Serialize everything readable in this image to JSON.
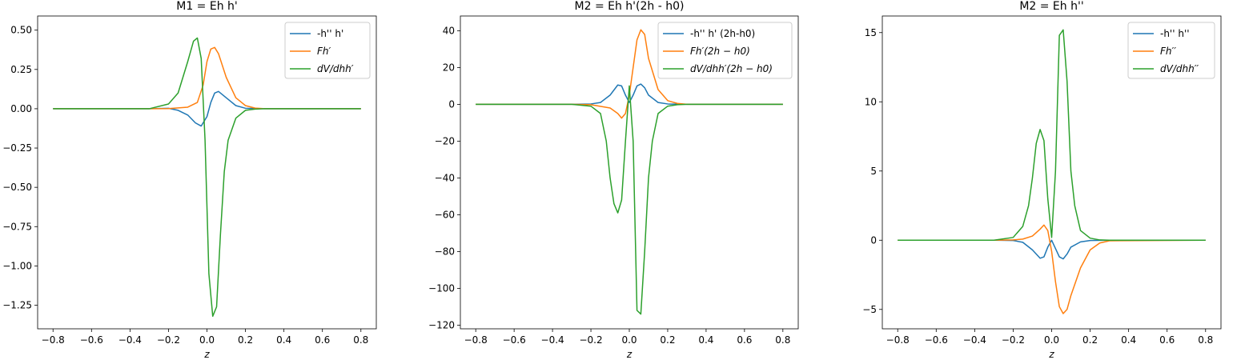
{
  "colors": {
    "blue": "#1f77b4",
    "orange": "#ff7f0e",
    "green": "#2ca02c"
  },
  "chart_data": [
    {
      "type": "line",
      "title": "M1 = Eh h'",
      "xlabel": "z",
      "ylabel": "",
      "xlim": [
        -0.88,
        0.88
      ],
      "ylim": [
        -1.4,
        0.59
      ],
      "xticks": [
        -0.8,
        -0.6,
        -0.4,
        -0.2,
        0.0,
        0.2,
        0.4,
        0.6,
        0.8
      ],
      "xtick_labels": [
        "−0.8",
        "−0.6",
        "−0.4",
        "−0.2",
        "0.0",
        "0.2",
        "0.4",
        "0.6",
        "0.8"
      ],
      "yticks": [
        -1.25,
        -1.0,
        -0.75,
        -0.5,
        -0.25,
        0.0,
        0.25,
        0.5
      ],
      "ytick_labels": [
        "−1.25",
        "−1.00",
        "−0.75",
        "−0.50",
        "−0.25",
        "0.00",
        "0.25",
        "0.50"
      ],
      "legend_position": "top-right",
      "series": [
        {
          "name": "-h'' h'",
          "color": "#1f77b4",
          "x": [
            -0.8,
            -0.3,
            -0.2,
            -0.15,
            -0.1,
            -0.06,
            -0.03,
            0.0,
            0.02,
            0.04,
            0.06,
            0.1,
            0.15,
            0.2,
            0.3,
            0.8
          ],
          "y": [
            0,
            0,
            0.003,
            -0.01,
            -0.04,
            -0.09,
            -0.11,
            -0.05,
            0.04,
            0.1,
            0.11,
            0.07,
            0.02,
            0.003,
            0,
            0
          ]
        },
        {
          "name": "Fh′",
          "color": "#ff7f0e",
          "x": [
            -0.8,
            -0.3,
            -0.2,
            -0.1,
            -0.05,
            -0.02,
            0.0,
            0.02,
            0.04,
            0.06,
            0.1,
            0.15,
            0.2,
            0.25,
            0.3,
            0.8
          ],
          "y": [
            0,
            0,
            0.001,
            0.01,
            0.04,
            0.15,
            0.3,
            0.38,
            0.39,
            0.35,
            0.2,
            0.07,
            0.02,
            0.004,
            0,
            0
          ]
        },
        {
          "name": "dV/dhh′",
          "color": "#2ca02c",
          "x": [
            -0.8,
            -0.3,
            -0.2,
            -0.15,
            -0.1,
            -0.07,
            -0.05,
            -0.03,
            -0.01,
            0.01,
            0.03,
            0.05,
            0.07,
            0.09,
            0.11,
            0.15,
            0.2,
            0.25,
            0.3,
            0.8
          ],
          "y": [
            0,
            0,
            0.03,
            0.1,
            0.3,
            0.43,
            0.45,
            0.32,
            -0.2,
            -1.05,
            -1.32,
            -1.26,
            -0.8,
            -0.4,
            -0.2,
            -0.06,
            -0.01,
            -0.002,
            0,
            0
          ]
        }
      ]
    },
    {
      "type": "line",
      "title": "M2 = Eh h'(2h - h0)",
      "xlabel": "z",
      "ylabel": "",
      "xlim": [
        -0.88,
        0.88
      ],
      "ylim": [
        -122,
        48
      ],
      "xticks": [
        -0.8,
        -0.6,
        -0.4,
        -0.2,
        0.0,
        0.2,
        0.4,
        0.6,
        0.8
      ],
      "xtick_labels": [
        "−0.8",
        "−0.6",
        "−0.4",
        "−0.2",
        "0.0",
        "0.2",
        "0.4",
        "0.6",
        "0.8"
      ],
      "yticks": [
        -120,
        -100,
        -80,
        -60,
        -40,
        -20,
        0,
        20,
        40
      ],
      "ytick_labels": [
        "−120",
        "−100",
        "−80",
        "−60",
        "−40",
        "−20",
        "0",
        "20",
        "40"
      ],
      "legend_position": "top-right",
      "series": [
        {
          "name": "-h'' h' (2h-h0)",
          "color": "#1f77b4",
          "x": [
            -0.8,
            -0.3,
            -0.2,
            -0.15,
            -0.1,
            -0.06,
            -0.04,
            -0.02,
            0.0,
            0.02,
            0.04,
            0.06,
            0.08,
            0.1,
            0.15,
            0.2,
            0.3,
            0.8
          ],
          "y": [
            0,
            0,
            0.2,
            1,
            5,
            10.5,
            10,
            5,
            1,
            5,
            10,
            11,
            9,
            5,
            1,
            0.2,
            0,
            0
          ]
        },
        {
          "name": "Fh′(2h − h0)",
          "color": "#ff7f0e",
          "x": [
            -0.8,
            -0.3,
            -0.2,
            -0.1,
            -0.06,
            -0.04,
            -0.02,
            0.0,
            0.02,
            0.04,
            0.06,
            0.08,
            0.1,
            0.15,
            0.2,
            0.25,
            0.3,
            0.8
          ],
          "y": [
            0,
            0,
            -0.2,
            -2,
            -5,
            -7.5,
            -5,
            5,
            20,
            35,
            40.5,
            38,
            25,
            8,
            2,
            0.5,
            0,
            0
          ]
        },
        {
          "name": "dV/dhh′(2h − h0)",
          "color": "#2ca02c",
          "x": [
            -0.8,
            -0.3,
            -0.2,
            -0.15,
            -0.12,
            -0.1,
            -0.08,
            -0.06,
            -0.04,
            -0.02,
            0.0,
            0.02,
            0.04,
            0.06,
            0.08,
            0.1,
            0.12,
            0.15,
            0.2,
            0.25,
            0.3,
            0.8
          ],
          "y": [
            0,
            0,
            -1,
            -5,
            -20,
            -40,
            -54,
            -59,
            -52,
            -20,
            10,
            -20,
            -112,
            -114,
            -80,
            -40,
            -20,
            -5,
            -1,
            -0.2,
            0,
            0
          ]
        }
      ]
    },
    {
      "type": "line",
      "title": "M2 = Eh h''",
      "xlabel": "z",
      "ylabel": "",
      "xlim": [
        -0.88,
        0.88
      ],
      "ylim": [
        -6.4,
        16.2
      ],
      "xticks": [
        -0.8,
        -0.6,
        -0.4,
        -0.2,
        0.0,
        0.2,
        0.4,
        0.6,
        0.8
      ],
      "xtick_labels": [
        "−0.8",
        "−0.6",
        "−0.4",
        "−0.2",
        "0.0",
        "0.2",
        "0.4",
        "0.6",
        "0.8"
      ],
      "yticks": [
        -5,
        0,
        5,
        10,
        15
      ],
      "ytick_labels": [
        "−5",
        "0",
        "5",
        "10",
        "15"
      ],
      "legend_position": "top-right",
      "series": [
        {
          "name": "-h'' h''",
          "color": "#1f77b4",
          "x": [
            -0.8,
            -0.3,
            -0.2,
            -0.15,
            -0.1,
            -0.06,
            -0.04,
            -0.02,
            0.0,
            0.02,
            0.04,
            0.06,
            0.08,
            0.1,
            0.15,
            0.2,
            0.3,
            0.8
          ],
          "y": [
            0,
            0,
            -0.02,
            -0.15,
            -0.7,
            -1.3,
            -1.2,
            -0.5,
            0.0,
            -0.6,
            -1.2,
            -1.35,
            -1.0,
            -0.5,
            -0.12,
            -0.02,
            0,
            0
          ]
        },
        {
          "name": "Fh′′",
          "color": "#ff7f0e",
          "x": [
            -0.8,
            -0.3,
            -0.2,
            -0.15,
            -0.1,
            -0.06,
            -0.04,
            -0.02,
            0.0,
            0.02,
            0.04,
            0.06,
            0.08,
            0.1,
            0.15,
            0.2,
            0.25,
            0.3,
            0.8
          ],
          "y": [
            0,
            0,
            0.02,
            0.08,
            0.3,
            0.8,
            1.1,
            0.7,
            -0.8,
            -3.0,
            -4.8,
            -5.3,
            -5.0,
            -4.0,
            -2.0,
            -0.7,
            -0.2,
            -0.04,
            0
          ]
        },
        {
          "name": "dV/dhh′′",
          "color": "#2ca02c",
          "x": [
            -0.8,
            -0.3,
            -0.2,
            -0.15,
            -0.12,
            -0.1,
            -0.08,
            -0.06,
            -0.04,
            -0.02,
            0.0,
            0.02,
            0.04,
            0.06,
            0.08,
            0.1,
            0.12,
            0.15,
            0.2,
            0.25,
            0.3,
            0.8
          ],
          "y": [
            0,
            0,
            0.2,
            1,
            2.5,
            4.5,
            7,
            8,
            7.2,
            3,
            0.2,
            5,
            14.8,
            15.2,
            11.5,
            5,
            2.5,
            0.7,
            0.15,
            0.02,
            0,
            0
          ]
        }
      ]
    }
  ]
}
